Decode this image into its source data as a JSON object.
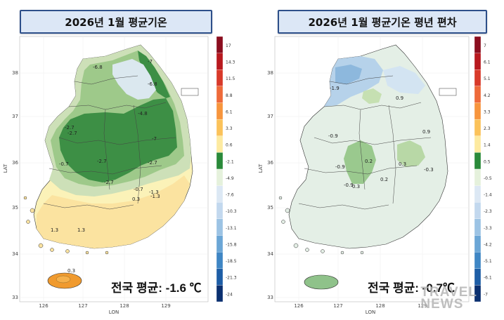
{
  "left": {
    "title": "2026년 1월 평균기온",
    "average_text": "전국 평균: -1.6 ℃",
    "legend_values": [
      "17",
      "14.3",
      "11.5",
      "8.8",
      "6.1",
      "3.3",
      "0.6",
      "-2.1",
      "-4.9",
      "-7.6",
      "-10.3",
      "-13.1",
      "-15.8",
      "-18.5",
      "-21.3",
      "-24"
    ],
    "legend_colors": [
      "#8b0e1f",
      "#b8191f",
      "#d83a2a",
      "#ee6a3a",
      "#f7953d",
      "#fbc25a",
      "#fdeaa0",
      "#2a8a3a",
      "#e5f1dc",
      "#dce8f4",
      "#c2d8ee",
      "#9cc3e4",
      "#6ba6d6",
      "#3f86c4",
      "#1e5ea6",
      "#0b3070"
    ],
    "contour_labels": [
      "-6.8",
      "-7",
      "-6.8",
      "-2.7",
      "-4.8",
      "-7",
      "-2.7",
      "-2.7",
      "-2.7",
      "-0.7",
      "-2.7",
      "-0.7",
      "-1.3",
      "-1.3",
      "1.3",
      "1.3",
      "0.3",
      "0.3"
    ]
  },
  "right": {
    "title": "2026년 1월 평균기온 평년 편차",
    "average_text": "전국 평균: -0.7℃",
    "legend_values": [
      "7",
      "6.1",
      "5.1",
      "4.2",
      "3.3",
      "2.3",
      "1.4",
      "0.5",
      "-0.5",
      "-1.4",
      "-2.3",
      "-3.3",
      "-4.2",
      "-5.1",
      "-6.1",
      "-7"
    ],
    "legend_colors": [
      "#8b0e1f",
      "#b8191f",
      "#d83a2a",
      "#ee6a3a",
      "#f7953d",
      "#fbc25a",
      "#fdeaa0",
      "#2a8a3a",
      "#e5f1dc",
      "#dce8f4",
      "#c2d8ee",
      "#9cc3e4",
      "#6ba6d6",
      "#3f86c4",
      "#1e5ea6",
      "#0b3070"
    ],
    "contour_labels": [
      "-1.9",
      "-0.9",
      "0.9",
      "-0.9",
      "0.9",
      "0.2",
      "-0.9",
      "0.3",
      "0.2",
      "0.3",
      "-0.3"
    ]
  },
  "axes": {
    "x_ticks": [
      "126",
      "127",
      "128",
      "129"
    ],
    "y_ticks": [
      "38",
      "37",
      "36",
      "35",
      "34",
      "33"
    ],
    "x_label": "LON",
    "y_label": "LAT"
  },
  "watermark": [
    "TRAVEL",
    "NEWS"
  ]
}
